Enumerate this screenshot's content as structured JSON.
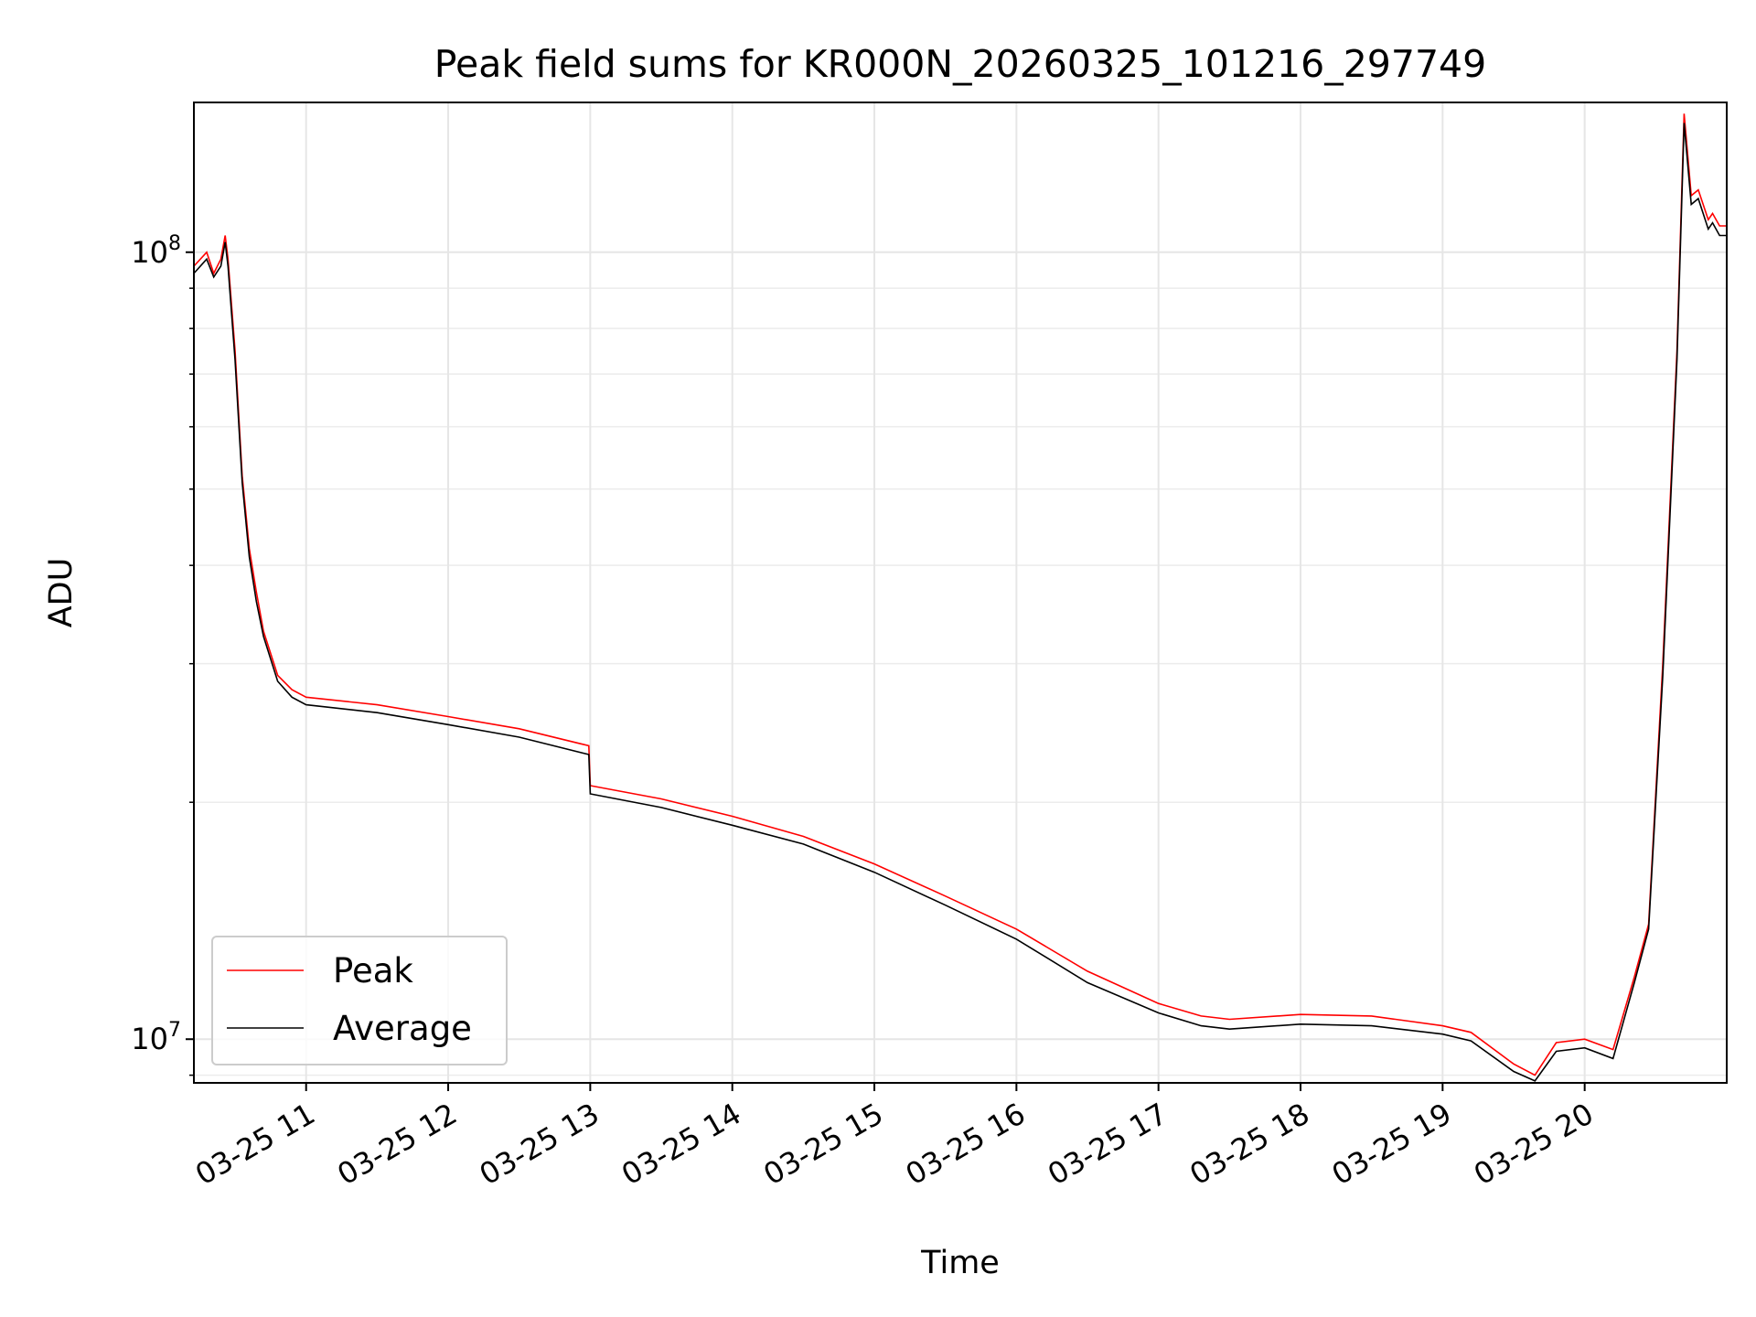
{
  "chart_data": {
    "type": "line",
    "title": "Peak field sums for KR000N_20260325_101216_297749",
    "xlabel": "Time",
    "ylabel": "ADU",
    "yscale": "log",
    "xlim_hours": [
      10.21,
      21.0
    ],
    "ylim": [
      8800000,
      155000000
    ],
    "grid": "on",
    "legend_location": "lower-left",
    "x_ticks": [
      {
        "label": "03-25 11",
        "hour": 11
      },
      {
        "label": "03-25 12",
        "hour": 12
      },
      {
        "label": "03-25 13",
        "hour": 13
      },
      {
        "label": "03-25 14",
        "hour": 14
      },
      {
        "label": "03-25 15",
        "hour": 15
      },
      {
        "label": "03-25 16",
        "hour": 16
      },
      {
        "label": "03-25 17",
        "hour": 17
      },
      {
        "label": "03-25 18",
        "hour": 18
      },
      {
        "label": "03-25 19",
        "hour": 19
      },
      {
        "label": "03-25 20",
        "hour": 20
      }
    ],
    "y_ticks": [
      {
        "base": "10",
        "exp": "7",
        "value": 10000000
      },
      {
        "base": "10",
        "exp": "8",
        "value": 100000000
      }
    ],
    "x_hours": [
      10.21,
      10.3,
      10.35,
      10.4,
      10.43,
      10.45,
      10.5,
      10.55,
      10.6,
      10.65,
      10.7,
      10.8,
      10.9,
      11.0,
      11.5,
      12.0,
      12.5,
      12.99,
      13.0,
      13.5,
      14.0,
      14.5,
      15.0,
      15.5,
      16.0,
      16.5,
      17.0,
      17.3,
      17.5,
      18.0,
      18.5,
      19.0,
      19.2,
      19.5,
      19.65,
      19.8,
      20.0,
      20.2,
      20.35,
      20.45,
      20.55,
      20.65,
      20.7,
      20.75,
      20.8,
      20.87,
      20.9,
      20.95,
      21.0
    ],
    "series": [
      {
        "name": "Peak",
        "color": "#ff0000",
        "values": [
          96000000,
          100000000,
          94000000,
          98000000,
          105000000,
          98000000,
          75000000,
          52000000,
          42000000,
          37000000,
          33000000,
          29000000,
          27800000,
          27200000,
          26600000,
          25700000,
          24800000,
          23600000,
          21000000,
          20200000,
          19200000,
          18100000,
          16700000,
          15200000,
          13800000,
          12200000,
          11100000,
          10700000,
          10600000,
          10750000,
          10700000,
          10400000,
          10200000,
          9300000,
          9000000,
          9900000,
          10000000,
          9700000,
          12000000,
          14000000,
          30000000,
          75000000,
          150000000,
          118000000,
          120000000,
          110000000,
          112000000,
          108000000,
          108000000
        ]
      },
      {
        "name": "Average",
        "color": "#000000",
        "values": [
          94000000,
          98000000,
          93000000,
          96000000,
          103000000,
          96000000,
          73000000,
          51000000,
          41000000,
          36000000,
          32500000,
          28500000,
          27200000,
          26600000,
          26000000,
          25100000,
          24200000,
          23000000,
          20500000,
          19700000,
          18700000,
          17700000,
          16300000,
          14800000,
          13400000,
          11800000,
          10800000,
          10400000,
          10300000,
          10450000,
          10400000,
          10150000,
          9950000,
          9100000,
          8850000,
          9650000,
          9750000,
          9450000,
          11800000,
          13800000,
          29000000,
          73000000,
          146000000,
          115000000,
          117000000,
          107000000,
          109000000,
          105000000,
          105000000
        ]
      }
    ]
  }
}
